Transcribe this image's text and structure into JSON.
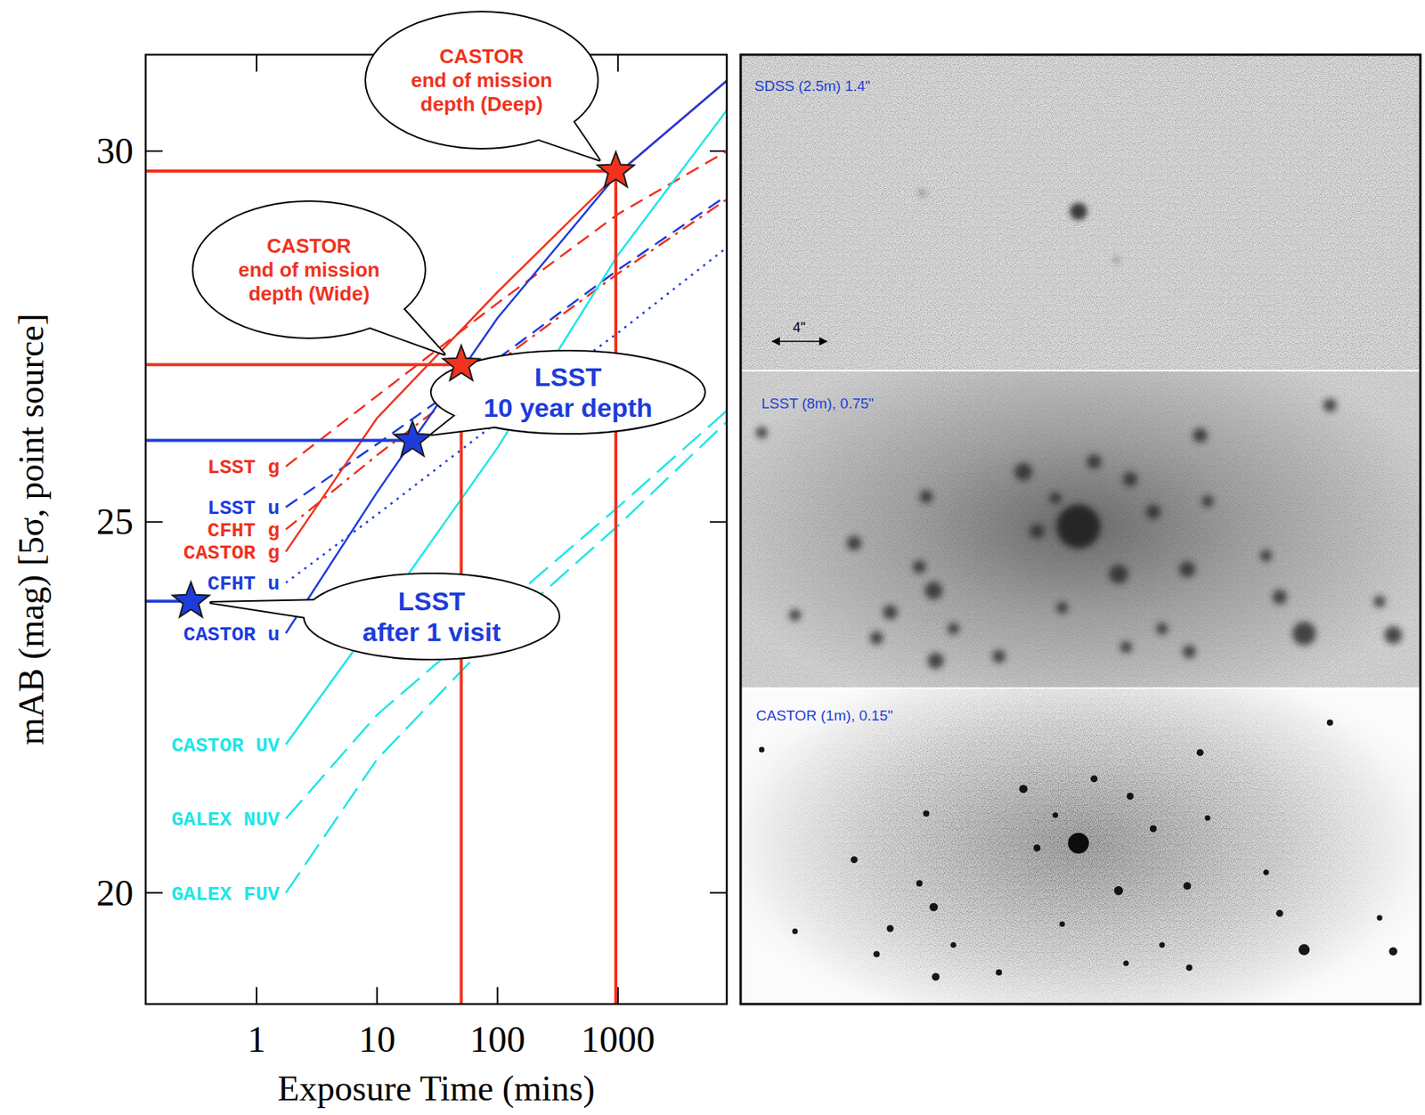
{
  "chart_data": {
    "type": "line",
    "log": "x",
    "x": [
      1.75,
      10,
      100,
      1000,
      8000
    ],
    "xlim": [
      0.12,
      8000
    ],
    "ylim": [
      18.5,
      31.3
    ],
    "xticks": [
      1,
      10,
      100,
      1000
    ],
    "yticks": [
      20,
      25,
      30
    ],
    "x_label": "Exposure Time (mins)",
    "y_label": "mAB (mag) [5σ, point source]",
    "series": [
      {
        "name": "LSST g",
        "color": "#f0321e",
        "line_style": "dashed",
        "values": [
          25.75,
          26.7,
          27.95,
          29.15,
          30.0
        ]
      },
      {
        "name": "LSST u",
        "color": "#1e3cdc",
        "line_style": "dashed",
        "values": [
          25.2,
          26.05,
          27.2,
          28.4,
          29.4
        ]
      },
      {
        "name": "CFHT g",
        "color": "#f0321e",
        "line_style": "dashdot",
        "values": [
          24.9,
          25.9,
          27.15,
          28.35,
          29.35
        ]
      },
      {
        "name": "CASTOR g",
        "color": "#f0321e",
        "line_style": "solid",
        "values": [
          24.6,
          26.4,
          28.1,
          29.7,
          30.95
        ]
      },
      {
        "name": "CFHT u",
        "color": "#1e3cdc",
        "line_style": "dotted",
        "values": [
          24.18,
          25.1,
          26.35,
          27.55,
          28.7
        ]
      },
      {
        "name": "CASTOR u",
        "color": "#1e3cdc",
        "line_style": "solid",
        "values": [
          23.5,
          25.4,
          27.75,
          29.7,
          30.95
        ]
      },
      {
        "name": "CASTOR UV",
        "color": "#1ee6e6",
        "line_style": "solid",
        "values": [
          22.0,
          23.7,
          26.0,
          28.6,
          30.55
        ]
      },
      {
        "name": "GALEX NUV",
        "color": "#1ee6e6",
        "line_style": "longdash",
        "values": [
          21.0,
          22.4,
          23.8,
          25.2,
          26.5
        ]
      },
      {
        "name": "GALEX FUV",
        "color": "#1ee6e6",
        "line_style": "longdash",
        "values": [
          20.0,
          21.8,
          23.5,
          24.95,
          26.35
        ]
      }
    ],
    "annotations": [
      {
        "text": "CASTOR\nend of mission\ndepth (Deep)",
        "x": 960,
        "y": 29.73,
        "color": "#f0321e",
        "hline": true,
        "vline": true
      },
      {
        "text": "CASTOR\nend of mission\ndepth (Wide)",
        "x": 50,
        "y": 27.12,
        "color": "#f0321e",
        "hline": true,
        "vline": true
      },
      {
        "text": "LSST\n10 year depth",
        "x": 19.7,
        "y": 26.1,
        "color": "#1e3cdc",
        "hline": true,
        "vline": false
      },
      {
        "text": "LSST\nafter 1 visit",
        "x": 0.285,
        "y": 23.93,
        "color": "#1e3cdc",
        "hline": true,
        "vline": false
      }
    ]
  },
  "images": [
    {
      "label": "SDSS (2.5m) 1.4\"",
      "scale_bar": "4\""
    },
    {
      "label": "LSST (8m), 0.75\""
    },
    {
      "label": "CASTOR (1m), 0.15\""
    }
  ]
}
